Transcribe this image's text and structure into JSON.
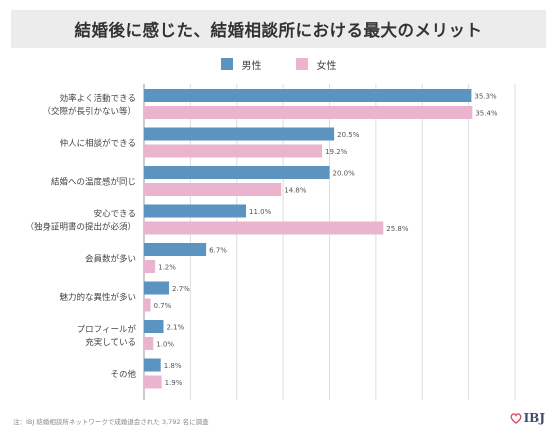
{
  "chart_data": {
    "type": "bar",
    "orientation": "horizontal",
    "title": "結婚後に感じた、結婚相談所における最大のメリット",
    "categories": [
      [
        "効率よく活動できる",
        "（交際が長引かない等）"
      ],
      [
        "仲人に相談ができる"
      ],
      [
        "結婚への温度感が同じ"
      ],
      [
        "安心できる",
        "（独身証明書の提出が必須）"
      ],
      [
        "会員数が多い"
      ],
      [
        "魅力的な異性が多い"
      ],
      [
        "プロフィールが",
        "充実している"
      ],
      [
        "その他"
      ]
    ],
    "series": [
      {
        "name": "男性",
        "color": "#5b93c1",
        "values": [
          35.3,
          20.5,
          20.0,
          11.0,
          6.7,
          2.7,
          2.1,
          1.8
        ],
        "labels": [
          "35.3%",
          "20.5%",
          "20.0%",
          "11.0%",
          "6.7%",
          "2.7%",
          "2.1%",
          "1.8%"
        ]
      },
      {
        "name": "女性",
        "color": "#eab4cf",
        "values": [
          35.4,
          19.2,
          14.8,
          25.8,
          1.2,
          0.7,
          1.0,
          1.9
        ],
        "labels": [
          "35.4%",
          "19.2%",
          "14.8%",
          "25.8%",
          "1.2%",
          "0.7%",
          "1.0%",
          "1.9%"
        ]
      }
    ],
    "xlim": [
      0,
      40
    ],
    "grid": true,
    "legend_position": "top-center"
  },
  "footnote": "注：IBJ 結婚相談所ネットワークで成婚退会された 3,792 名に調査",
  "logo_text": "IBJ",
  "colors": {
    "male": "#5b93c1",
    "female": "#eab4cf",
    "grid": "#dddddd",
    "axis": "#999999"
  }
}
